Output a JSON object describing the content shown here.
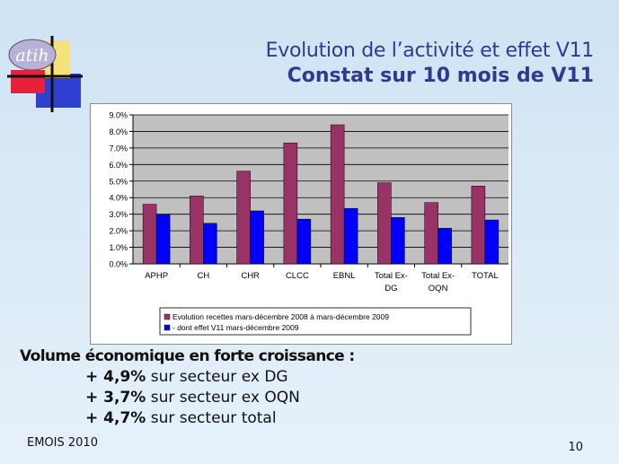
{
  "slide": {
    "title_line1": "Evolution de l’activité et effet V11",
    "title_line2": "Constat sur 10 mois de V11",
    "logo_text": "atih",
    "headline": "Volume économique en forte croissance :",
    "points": [
      {
        "value": "+ 4,9%",
        "text": " sur secteur ex DG"
      },
      {
        "value": "+ 3,7%",
        "text": " sur secteur ex OQN"
      },
      {
        "value": "+ 4,7%",
        "text": " sur secteur total"
      }
    ],
    "footer": "EMOIS 2010",
    "page_number": "10"
  },
  "colors": {
    "series1": "#993366",
    "series2": "#0000ff",
    "title": "#2e3a8c",
    "plot_bg": "#c0c0c0"
  },
  "chart_data": {
    "type": "bar",
    "categories": [
      "APHP",
      "CH",
      "CHR",
      "CLCC",
      "EBNL",
      "Total Ex-DG",
      "Total Ex-OQN",
      "TOTAL"
    ],
    "category_lines": [
      [
        "APHP"
      ],
      [
        "CH"
      ],
      [
        "CHR"
      ],
      [
        "CLCC"
      ],
      [
        "EBNL"
      ],
      [
        "Total Ex-",
        "DG"
      ],
      [
        "Total Ex-",
        "OQN"
      ],
      [
        "TOTAL"
      ]
    ],
    "series": [
      {
        "name": "Evolution recettes mars-décembre 2008 à mars-décembre 2009",
        "values": [
          3.6,
          4.1,
          5.6,
          7.3,
          8.4,
          4.9,
          3.7,
          4.7
        ]
      },
      {
        "name": "- dont effet V11 mars-décembre 2009",
        "values": [
          3.0,
          2.45,
          3.2,
          2.7,
          3.35,
          2.8,
          2.15,
          2.65
        ]
      }
    ],
    "ylim": [
      0,
      9
    ],
    "ytick_step": 1,
    "ytick_labels": [
      "0.0%",
      "1.0%",
      "2.0%",
      "3.0%",
      "4.0%",
      "5.0%",
      "6.0%",
      "7.0%",
      "8.0%",
      "9.0%"
    ],
    "grid": true,
    "legend_position": "bottom"
  }
}
